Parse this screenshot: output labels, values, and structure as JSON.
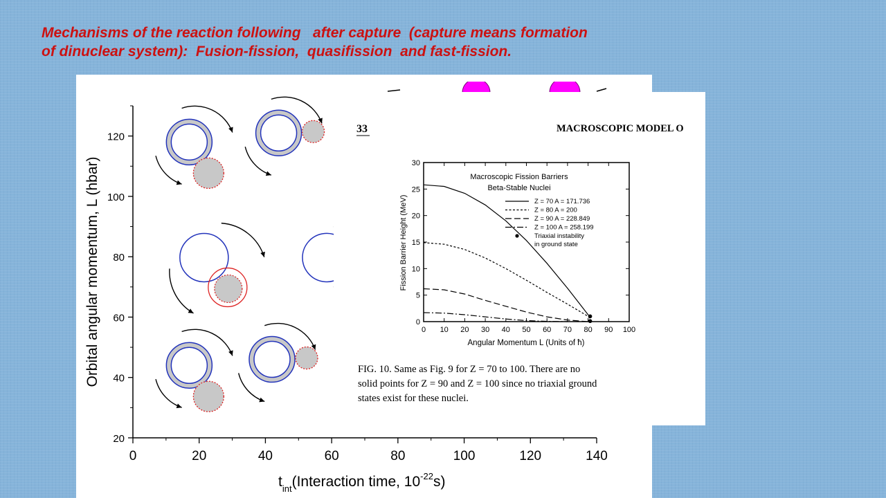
{
  "slide": {
    "title_line1": "Mechanisms of the reaction following   after capture  (capture means formation",
    "title_line2": "of dinuclear system):  Fusion-fission,  quasifission  and fast-fission."
  },
  "colors": {
    "background": "#86b4da",
    "title": "#cc1111",
    "nucleus_outline": "#2233bb",
    "fragment_outline": "#dd2222",
    "fragment_fill": "#c8c8c8",
    "magenta": "#ff00ff"
  },
  "chart_data": [
    {
      "type": "scatter",
      "xlabel_main": "t",
      "xlabel_sub": "int",
      "xlabel_rest": "(Interaction time, 10",
      "xlabel_sup": "-22",
      "xlabel_end": "s)",
      "ylabel": "Orbital angular momentum, L (hbar)",
      "xlim": [
        0,
        140
      ],
      "ylim": [
        20,
        130
      ],
      "x_ticks": [
        "0",
        "20",
        "40",
        "60",
        "80",
        "100",
        "120",
        "140"
      ],
      "y_ticks": [
        "20",
        "40",
        "60",
        "80",
        "100",
        "120"
      ],
      "y_tick_values": [
        20,
        40,
        60,
        80,
        100,
        120
      ],
      "x_tick_values": [
        0,
        20,
        40,
        60,
        80,
        100,
        120,
        140
      ],
      "illustrations": [
        {
          "name": "dns-rotating-1",
          "x": 17,
          "y": 118,
          "kind": "ring"
        },
        {
          "name": "dns-rotating-2",
          "x": 44,
          "y": 121,
          "kind": "ring"
        },
        {
          "name": "dns-touching",
          "x": 24,
          "y": 82,
          "kind": "open"
        },
        {
          "name": "dns-partial",
          "x": 56,
          "y": 82,
          "kind": "open"
        },
        {
          "name": "dns-rotating-3",
          "x": 17,
          "y": 44,
          "kind": "ring"
        },
        {
          "name": "dns-rotating-4",
          "x": 42,
          "y": 46,
          "kind": "ring"
        }
      ]
    },
    {
      "type": "line",
      "page_number": "33",
      "header": "MACROSCOPIC MODEL O",
      "title_line1": "Macroscopic Fission Barriers",
      "title_line2": "Beta-Stable Nuclei",
      "xlabel": "Angular Momentum  L  (Units of ħ)",
      "ylabel": "Fission Barrier Height  (MeV)",
      "xlim": [
        0,
        100
      ],
      "ylim": [
        0,
        30
      ],
      "x_ticks": [
        "0",
        "10",
        "20",
        "30",
        "40",
        "50",
        "60",
        "70",
        "80",
        "90",
        "100"
      ],
      "y_ticks": [
        "0",
        "5",
        "10",
        "15",
        "20",
        "25",
        "30"
      ],
      "x_tick_values": [
        0,
        10,
        20,
        30,
        40,
        50,
        60,
        70,
        80,
        90,
        100
      ],
      "y_tick_values": [
        0,
        5,
        10,
        15,
        20,
        25,
        30
      ],
      "series": [
        {
          "name": "Z = 70   A = 171.736",
          "dash": "",
          "x": [
            0,
            10,
            20,
            30,
            40,
            50,
            60,
            70,
            75,
            80,
            81
          ],
          "y": [
            25.8,
            25.5,
            24.2,
            22.0,
            19.0,
            15.3,
            11.0,
            6.3,
            3.8,
            1.3,
            0.9
          ]
        },
        {
          "name": "Z = 80   A = 200",
          "dash": "3,2.5",
          "x": [
            0,
            10,
            20,
            30,
            40,
            50,
            60,
            70,
            80,
            81
          ],
          "y": [
            14.9,
            14.6,
            13.6,
            12.0,
            10.0,
            7.8,
            5.5,
            3.3,
            1.0,
            0.5
          ]
        },
        {
          "name": "Z = 90   A = 228.849",
          "dash": "9,4",
          "x": [
            0,
            10,
            20,
            30,
            40,
            50,
            60,
            70,
            80
          ],
          "y": [
            6.2,
            6.0,
            5.2,
            4.0,
            2.9,
            1.8,
            0.9,
            0.3,
            0.0
          ]
        },
        {
          "name": "Z = 100  A = 258.199",
          "dash": "9,3,2,3",
          "x": [
            0,
            10,
            20,
            30,
            40,
            50,
            60,
            70
          ],
          "y": [
            1.7,
            1.6,
            1.3,
            0.9,
            0.5,
            0.2,
            0.05,
            0.0
          ]
        }
      ],
      "points": [
        {
          "x": 81,
          "y": 1.0
        },
        {
          "x": 81,
          "y": 0.1
        }
      ],
      "points_label_1": "Triaxial instability",
      "points_label_2": "in ground state",
      "caption_line1": "FIG. 10.  Same as Fig. 9 for  Z = 70 to 100.  There are no",
      "caption_line2": "solid points for  Z = 90  and  Z = 100  since no triaxial ground",
      "caption_line3": "states exist for these nuclei."
    }
  ]
}
